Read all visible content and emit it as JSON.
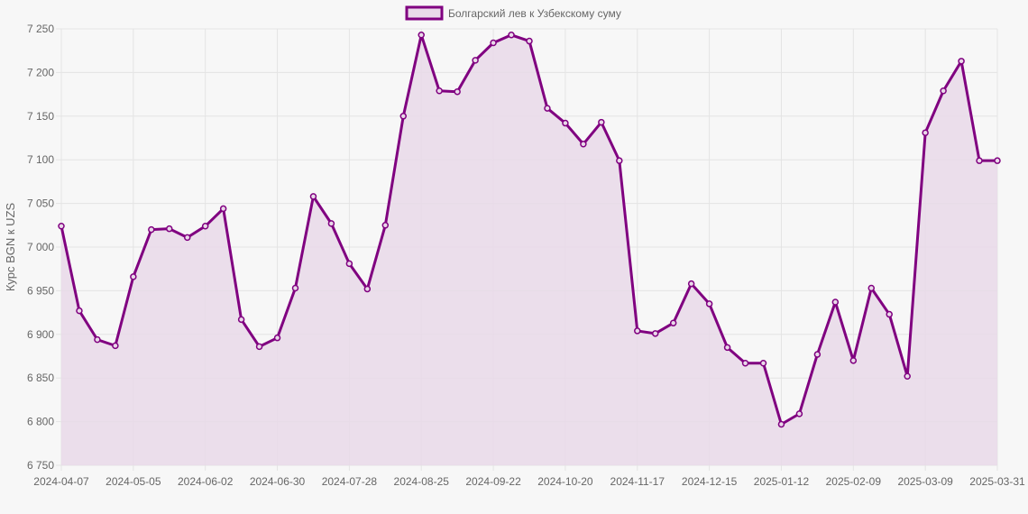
{
  "chart_data": {
    "type": "area",
    "ylabel": "Курс BGN к UZS",
    "ylim": [
      6750,
      7250
    ],
    "y_ticks": [
      6750,
      6800,
      6850,
      6900,
      6950,
      7000,
      7050,
      7100,
      7150,
      7200,
      7250
    ],
    "y_tick_labels": [
      "6 750",
      "6 800",
      "6 850",
      "6 900",
      "6 950",
      "7 000",
      "7 050",
      "7 100",
      "7 150",
      "7 200",
      "7 250"
    ],
    "x_tick_labels": [
      "2024-04-07",
      "2024-05-05",
      "2024-06-02",
      "2024-06-30",
      "2024-07-28",
      "2024-08-25",
      "2024-09-22",
      "2024-10-20",
      "2024-11-17",
      "2024-12-15",
      "2025-01-12",
      "2025-02-09",
      "2025-03-09",
      "2025-03-31"
    ],
    "legend_position": "top",
    "grid": true,
    "colors": {
      "line": "#800080",
      "fill": "#e9d9e9",
      "grid": "#e4e4e4"
    },
    "series": [
      {
        "name": "Болгарский лев к Узбекскому суму",
        "values": [
          7024,
          6927,
          6894,
          6887,
          6966,
          7020,
          7021,
          7011,
          7024,
          7044,
          6917,
          6886,
          6896,
          6953,
          7058,
          7027,
          6981,
          6952,
          7025,
          7150,
          7243,
          7179,
          7178,
          7214,
          7234,
          7243,
          7236,
          7159,
          7142,
          7118,
          7143,
          7099,
          6904,
          6901,
          6913,
          6958,
          6935,
          6885,
          6867,
          6867,
          6797,
          6809,
          6877,
          6937,
          6870,
          6953,
          6923,
          6852,
          7131,
          7179,
          7213,
          7099,
          7099
        ]
      }
    ]
  }
}
